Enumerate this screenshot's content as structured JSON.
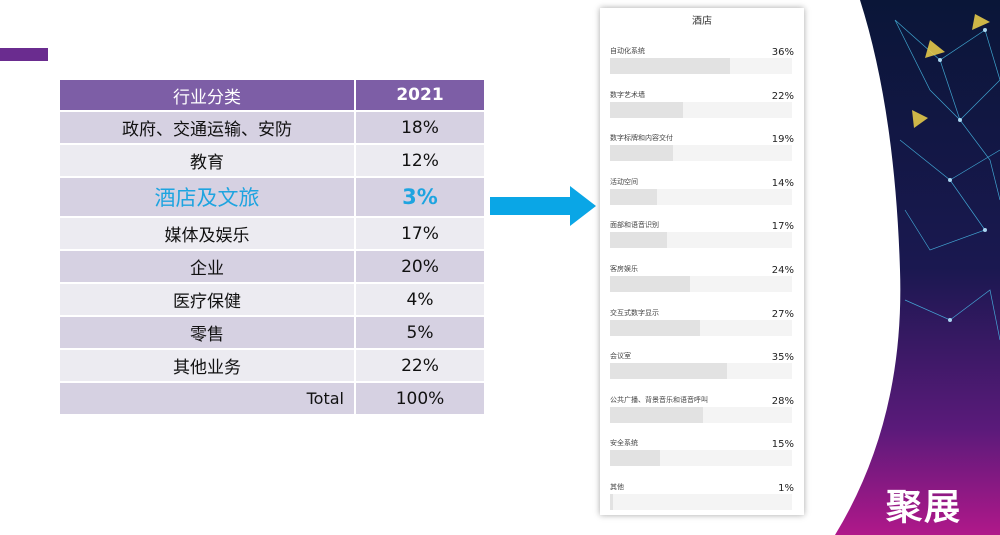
{
  "table": {
    "header": {
      "category": "行业分类",
      "year": "2021"
    },
    "rows": [
      {
        "category": "政府、交通运输、安防",
        "value": "18%"
      },
      {
        "category": "教育",
        "value": "12%"
      },
      {
        "category": "酒店及文旅",
        "value": "3%"
      },
      {
        "category": "媒体及娱乐",
        "value": "17%"
      },
      {
        "category": "企业",
        "value": "20%"
      },
      {
        "category": "医疗保健",
        "value": "4%"
      },
      {
        "category": "零售",
        "value": "5%"
      },
      {
        "category": "其他业务",
        "value": "22%"
      }
    ],
    "total": {
      "label": "Total",
      "value": "100%"
    }
  },
  "chart_data": {
    "type": "bar",
    "title": "酒店",
    "categories": [
      "自动化系统",
      "数字艺术墙",
      "数字标牌和内容交付",
      "活动空间",
      "面部和语音识别",
      "客房娱乐",
      "交互式数字显示",
      "会议室",
      "公共广播、背景音乐和语音呼叫",
      "安全系统",
      "其他"
    ],
    "values": [
      36,
      22,
      19,
      14,
      17,
      24,
      27,
      35,
      28,
      15,
      1
    ],
    "value_labels": [
      "36%",
      "22%",
      "19%",
      "14%",
      "17%",
      "24%",
      "27%",
      "35%",
      "28%",
      "15%",
      "1%"
    ]
  },
  "brand": {
    "text": "聚展"
  },
  "colors": {
    "accent": "#6a2c8f",
    "header": "#7d5ea6",
    "highlight": "#1ea4e0",
    "arrow": "#0aa6e6"
  }
}
